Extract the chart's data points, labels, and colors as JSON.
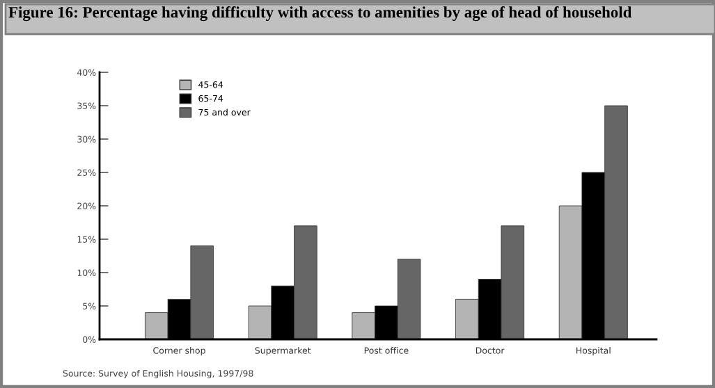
{
  "chart_data": {
    "type": "bar",
    "title": "Figure 16: Percentage having difficulty with access to amenities by age of head of household",
    "categories": [
      "Corner shop",
      "Supermarket",
      "Post office",
      "Doctor",
      "Hospital"
    ],
    "series": [
      {
        "name": "45-64",
        "color": "#b4b4b4",
        "values": [
          4,
          5,
          4,
          6,
          20
        ]
      },
      {
        "name": "65-74",
        "color": "#000000",
        "values": [
          6,
          8,
          5,
          9,
          25
        ]
      },
      {
        "name": "75 and over",
        "color": "#666666",
        "values": [
          14,
          17,
          12,
          17,
          35
        ]
      }
    ],
    "ylim": [
      0,
      40
    ],
    "yticks": [
      {
        "value": 0,
        "label": "0%"
      },
      {
        "value": 5,
        "label": "5%"
      },
      {
        "value": 10,
        "label": "10%"
      },
      {
        "value": 15,
        "label": "15%"
      },
      {
        "value": 20,
        "label": "20%"
      },
      {
        "value": 25,
        "label": "25%"
      },
      {
        "value": 30,
        "label": "30%"
      },
      {
        "value": 35,
        "label": "35%"
      },
      {
        "value": 40,
        "label": "40%"
      }
    ],
    "legend": "top left",
    "grid": false,
    "annotations": [
      "Source: Survey of English Housing, 1997/98"
    ]
  }
}
